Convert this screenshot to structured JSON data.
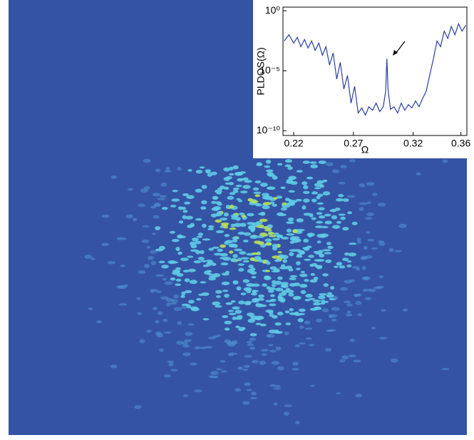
{
  "chart_data": {
    "type": "line",
    "log_y": true,
    "ylabel": "PLDOS(Ω)",
    "xlabel": "Ω",
    "x": [
      0.212,
      0.216,
      0.22,
      0.223,
      0.226,
      0.229,
      0.232,
      0.235,
      0.238,
      0.241,
      0.244,
      0.247,
      0.25,
      0.253,
      0.256,
      0.259,
      0.262,
      0.265,
      0.268,
      0.271,
      0.274,
      0.277,
      0.28,
      0.283,
      0.286,
      0.289,
      0.292,
      0.295,
      0.297,
      0.298,
      0.299,
      0.301,
      0.304,
      0.307,
      0.31,
      0.313,
      0.316,
      0.319,
      0.322,
      0.325,
      0.328,
      0.331,
      0.334,
      0.337,
      0.34,
      0.343,
      0.346,
      0.349,
      0.352,
      0.355,
      0.358,
      0.361,
      0.364
    ],
    "series": [
      {
        "color": "#2b3f9e",
        "values": [
          0.003,
          0.01,
          0.002,
          0.006,
          0.001,
          0.004,
          0.0008,
          0.003,
          0.0005,
          0.002,
          0.0002,
          0.001,
          3e-05,
          0.0003,
          2e-06,
          5e-05,
          3e-07,
          4e-06,
          2e-08,
          5e-07,
          3e-09,
          8e-09,
          2e-09,
          1e-08,
          5e-09,
          2e-08,
          4e-09,
          1e-08,
          2e-07,
          0.0001,
          3e-07,
          6e-09,
          1e-08,
          3e-09,
          2e-08,
          5e-09,
          1.5e-08,
          8e-09,
          3e-08,
          1e-08,
          5e-08,
          2e-07,
          5e-06,
          0.0001,
          0.003,
          0.001,
          0.02,
          0.005,
          0.05,
          0.01,
          0.08,
          0.02,
          0.06
        ]
      }
    ],
    "xlim": [
      0.211,
      0.365
    ],
    "xticks": [
      0.22,
      0.27,
      0.32,
      0.36
    ],
    "ylim": [
      4e-11,
      2
    ],
    "yticks": [
      {
        "value": 1,
        "label": "10⁰"
      },
      {
        "value": 1e-05,
        "label": "10⁻⁵"
      },
      {
        "value": 1e-10,
        "label": "10⁻¹⁰"
      }
    ]
  }
}
